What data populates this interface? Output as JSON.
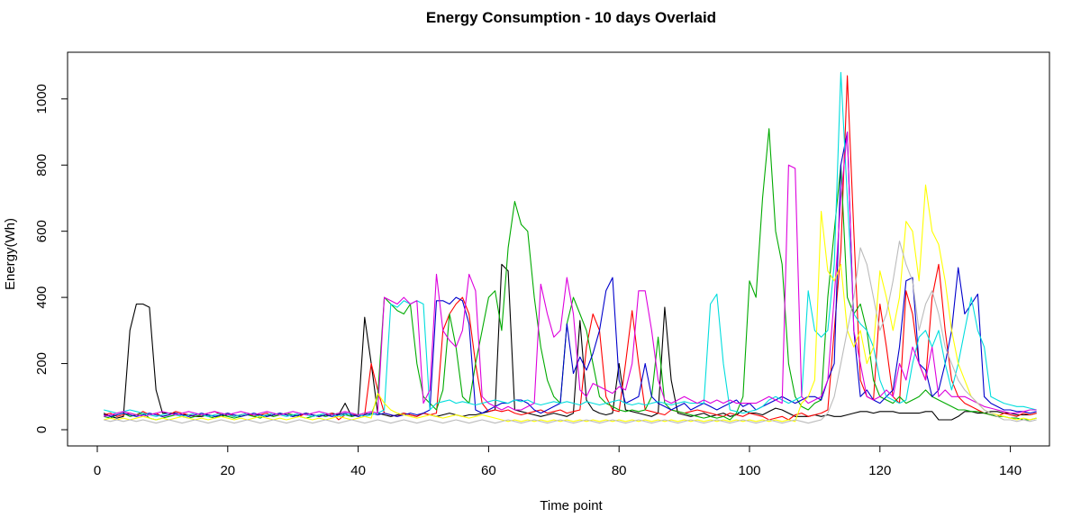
{
  "chart_data": {
    "type": "line",
    "title": "Energy Consumption - 10 days Overlaid",
    "xlabel": "Time point",
    "ylabel": "Energy(Wh)",
    "xlim": [
      1,
      144
    ],
    "ylim": [
      0,
      1080
    ],
    "x_ticks": [
      0,
      20,
      40,
      60,
      80,
      100,
      120,
      140
    ],
    "y_ticks": [
      0,
      200,
      400,
      600,
      800,
      1000
    ],
    "grid": false,
    "legend": "none",
    "series": [
      {
        "color": "#000000",
        "values": [
          50,
          40,
          35,
          40,
          300,
          380,
          380,
          370,
          120,
          50,
          50,
          50,
          45,
          45,
          40,
          40,
          45,
          40,
          40,
          45,
          40,
          45,
          50,
          45,
          45,
          40,
          45,
          50,
          45,
          40,
          45,
          50,
          45,
          40,
          45,
          50,
          45,
          80,
          40,
          45,
          340,
          200,
          50,
          45,
          40,
          45,
          50,
          45,
          40,
          50,
          45,
          40,
          45,
          50,
          45,
          40,
          45,
          45,
          50,
          55,
          60,
          500,
          480,
          60,
          55,
          50,
          45,
          40,
          45,
          50,
          45,
          40,
          50,
          330,
          90,
          60,
          50,
          45,
          50,
          200,
          60,
          55,
          50,
          45,
          40,
          50,
          370,
          150,
          50,
          45,
          40,
          45,
          50,
          40,
          45,
          50,
          40,
          45,
          60,
          50,
          50,
          45,
          55,
          65,
          60,
          50,
          40,
          40,
          40,
          45,
          40,
          45,
          40,
          40,
          45,
          50,
          55,
          55,
          50,
          55,
          55,
          55,
          50,
          50,
          50,
          50,
          55,
          55,
          30,
          30,
          30,
          40,
          55,
          55,
          50,
          50,
          55,
          55,
          50,
          50,
          45,
          45,
          45,
          50
        ]
      },
      {
        "color": "#FF0000",
        "values": [
          45,
          50,
          40,
          45,
          50,
          45,
          55,
          45,
          50,
          40,
          45,
          55,
          50,
          45,
          40,
          45,
          50,
          55,
          45,
          50,
          40,
          45,
          50,
          40,
          45,
          50,
          40,
          45,
          50,
          45,
          40,
          50,
          45,
          40,
          45,
          50,
          30,
          45,
          50,
          40,
          45,
          200,
          120,
          50,
          45,
          40,
          50,
          45,
          40,
          50,
          45,
          50,
          300,
          350,
          380,
          400,
          350,
          200,
          80,
          55,
          60,
          55,
          60,
          50,
          45,
          50,
          55,
          60,
          50,
          55,
          60,
          50,
          55,
          60,
          250,
          350,
          300,
          100,
          60,
          55,
          200,
          360,
          200,
          60,
          55,
          50,
          45,
          60,
          55,
          50,
          55,
          60,
          55,
          50,
          45,
          40,
          50,
          45,
          40,
          50,
          45,
          40,
          30,
          35,
          40,
          30,
          45,
          50,
          40,
          45,
          50,
          60,
          300,
          540,
          1070,
          600,
          150,
          100,
          90,
          380,
          250,
          100,
          80,
          420,
          350,
          200,
          150,
          400,
          500,
          300,
          150,
          100,
          80,
          70,
          60,
          50,
          45,
          40,
          50,
          45,
          40,
          50,
          45,
          50
        ]
      },
      {
        "color": "#00AA00",
        "values": [
          40,
          35,
          45,
          50,
          40,
          45,
          50,
          35,
          30,
          35,
          40,
          45,
          40,
          35,
          40,
          45,
          40,
          35,
          45,
          40,
          35,
          40,
          45,
          40,
          35,
          45,
          40,
          45,
          50,
          45,
          40,
          35,
          40,
          45,
          40,
          45,
          50,
          45,
          40,
          45,
          50,
          45,
          100,
          400,
          380,
          360,
          350,
          380,
          200,
          100,
          80,
          60,
          120,
          350,
          250,
          100,
          80,
          200,
          300,
          400,
          420,
          300,
          550,
          690,
          620,
          600,
          400,
          250,
          150,
          100,
          80,
          320,
          400,
          350,
          300,
          200,
          100,
          80,
          70,
          60,
          55,
          60,
          55,
          60,
          100,
          280,
          80,
          60,
          55,
          50,
          45,
          40,
          35,
          40,
          35,
          40,
          30,
          50,
          100,
          450,
          400,
          700,
          910,
          600,
          500,
          200,
          100,
          70,
          60,
          80,
          90,
          400,
          600,
          800,
          400,
          350,
          380,
          300,
          150,
          100,
          90,
          80,
          100,
          80,
          90,
          100,
          120,
          100,
          90,
          80,
          70,
          60,
          60,
          55,
          55,
          50,
          45,
          40,
          40,
          35,
          35,
          30,
          30,
          35
        ]
      },
      {
        "color": "#0000CC",
        "values": [
          45,
          40,
          45,
          50,
          45,
          40,
          45,
          50,
          45,
          40,
          45,
          50,
          45,
          40,
          45,
          50,
          45,
          40,
          45,
          50,
          45,
          40,
          45,
          50,
          45,
          40,
          45,
          50,
          45,
          40,
          45,
          50,
          45,
          40,
          45,
          40,
          45,
          50,
          45,
          40,
          45,
          50,
          45,
          50,
          45,
          40,
          45,
          50,
          45,
          50,
          60,
          390,
          390,
          380,
          400,
          390,
          320,
          60,
          50,
          60,
          70,
          80,
          80,
          90,
          90,
          80,
          60,
          50,
          60,
          70,
          80,
          320,
          170,
          220,
          180,
          230,
          300,
          420,
          460,
          150,
          80,
          90,
          100,
          200,
          100,
          80,
          70,
          60,
          70,
          80,
          60,
          70,
          80,
          70,
          60,
          70,
          80,
          90,
          70,
          80,
          60,
          70,
          80,
          90,
          100,
          90,
          80,
          90,
          100,
          100,
          90,
          150,
          200,
          800,
          900,
          300,
          100,
          120,
          90,
          80,
          100,
          120,
          250,
          450,
          460,
          200,
          180,
          100,
          120,
          200,
          300,
          490,
          350,
          380,
          410,
          100,
          80,
          70,
          60,
          60,
          55,
          55,
          50,
          55
        ]
      },
      {
        "color": "#00DDDD",
        "values": [
          60,
          55,
          50,
          55,
          60,
          55,
          50,
          45,
          40,
          45,
          50,
          45,
          40,
          45,
          50,
          45,
          40,
          45,
          50,
          45,
          40,
          45,
          50,
          45,
          40,
          45,
          50,
          45,
          40,
          45,
          50,
          45,
          40,
          45,
          50,
          45,
          40,
          45,
          50,
          45,
          40,
          45,
          50,
          60,
          380,
          370,
          390,
          380,
          390,
          380,
          60,
          80,
          85,
          90,
          80,
          85,
          80,
          75,
          80,
          85,
          90,
          85,
          80,
          90,
          85,
          90,
          80,
          75,
          80,
          85,
          80,
          85,
          80,
          75,
          85,
          80,
          75,
          80,
          85,
          90,
          80,
          75,
          80,
          75,
          80,
          85,
          80,
          75,
          80,
          85,
          80,
          80,
          80,
          380,
          410,
          200,
          60,
          55,
          50,
          55,
          60,
          70,
          90,
          100,
          90,
          80,
          90,
          100,
          420,
          300,
          280,
          300,
          500,
          1080,
          700,
          350,
          320,
          300,
          250,
          150,
          100,
          90,
          80,
          90,
          200,
          280,
          300,
          250,
          300,
          200,
          120,
          200,
          300,
          400,
          300,
          250,
          100,
          90,
          80,
          75,
          70,
          70,
          65,
          60
        ]
      },
      {
        "color": "#DD00DD",
        "values": [
          40,
          45,
          50,
          55,
          50,
          45,
          40,
          45,
          50,
          55,
          50,
          45,
          50,
          55,
          50,
          45,
          50,
          55,
          50,
          45,
          50,
          55,
          50,
          45,
          50,
          55,
          50,
          45,
          50,
          55,
          50,
          45,
          50,
          55,
          50,
          45,
          50,
          55,
          50,
          45,
          50,
          55,
          50,
          400,
          390,
          380,
          400,
          380,
          390,
          80,
          120,
          470,
          300,
          270,
          250,
          300,
          470,
          420,
          100,
          80,
          70,
          60,
          70,
          60,
          60,
          70,
          80,
          440,
          350,
          280,
          300,
          460,
          350,
          120,
          100,
          140,
          130,
          120,
          110,
          130,
          120,
          200,
          420,
          420,
          300,
          150,
          90,
          80,
          90,
          100,
          90,
          80,
          90,
          80,
          90,
          80,
          90,
          80,
          80,
          80,
          80,
          90,
          100,
          90,
          80,
          800,
          790,
          100,
          80,
          90,
          100,
          150,
          400,
          700,
          900,
          300,
          200,
          100,
          90,
          100,
          120,
          100,
          200,
          150,
          250,
          200,
          150,
          250,
          100,
          120,
          100,
          100,
          100,
          90,
          80,
          70,
          65,
          60,
          55,
          50,
          50,
          55,
          60,
          60
        ]
      },
      {
        "color": "#FFFF00",
        "values": [
          30,
          35,
          30,
          35,
          30,
          35,
          40,
          35,
          30,
          35,
          30,
          35,
          40,
          35,
          30,
          35,
          30,
          35,
          40,
          35,
          30,
          35,
          30,
          35,
          40,
          35,
          30,
          35,
          30,
          35,
          40,
          35,
          30,
          35,
          30,
          35,
          40,
          35,
          30,
          35,
          40,
          35,
          110,
          80,
          60,
          50,
          45,
          40,
          35,
          40,
          45,
          40,
          35,
          40,
          45,
          40,
          35,
          40,
          45,
          40,
          35,
          30,
          25,
          30,
          25,
          30,
          25,
          30,
          25,
          30,
          25,
          30,
          25,
          30,
          25,
          30,
          25,
          30,
          25,
          30,
          25,
          30,
          25,
          30,
          25,
          30,
          25,
          30,
          25,
          30,
          25,
          30,
          25,
          30,
          25,
          30,
          25,
          30,
          25,
          30,
          25,
          30,
          25,
          30,
          25,
          30,
          25,
          80,
          100,
          150,
          660,
          480,
          450,
          500,
          300,
          250,
          300,
          200,
          250,
          480,
          400,
          300,
          400,
          630,
          600,
          450,
          740,
          600,
          560,
          450,
          300,
          200,
          150,
          100,
          80,
          60,
          50,
          45,
          40,
          35,
          30,
          35,
          30,
          35
        ]
      },
      {
        "color": "#BBBBBB",
        "values": [
          30,
          25,
          30,
          25,
          30,
          25,
          30,
          25,
          20,
          25,
          30,
          25,
          20,
          25,
          30,
          25,
          20,
          25,
          30,
          25,
          20,
          25,
          30,
          25,
          20,
          25,
          30,
          25,
          20,
          25,
          30,
          25,
          20,
          25,
          30,
          25,
          20,
          25,
          30,
          25,
          20,
          25,
          30,
          25,
          20,
          25,
          30,
          25,
          20,
          25,
          30,
          25,
          20,
          25,
          30,
          25,
          20,
          25,
          30,
          25,
          20,
          25,
          30,
          25,
          20,
          25,
          30,
          25,
          20,
          25,
          30,
          25,
          20,
          25,
          30,
          25,
          20,
          25,
          30,
          25,
          20,
          25,
          30,
          25,
          20,
          25,
          30,
          25,
          20,
          25,
          30,
          25,
          20,
          25,
          30,
          25,
          20,
          25,
          30,
          25,
          20,
          25,
          30,
          25,
          20,
          25,
          30,
          25,
          20,
          25,
          30,
          50,
          100,
          200,
          300,
          400,
          550,
          500,
          400,
          300,
          350,
          450,
          570,
          500,
          450,
          300,
          380,
          420,
          350,
          250,
          200,
          150,
          120,
          100,
          80,
          60,
          50,
          40,
          30,
          30,
          25,
          30,
          25,
          30
        ]
      }
    ]
  }
}
